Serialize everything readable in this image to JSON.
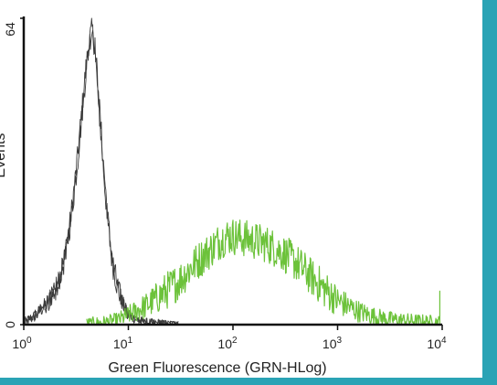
{
  "frame_color": "#2aa3b5",
  "chart_data": {
    "type": "line",
    "title": "",
    "xlabel": "Green Fluorescence (GRN-HLog)",
    "ylabel": "Events",
    "x_scale": "log",
    "xlim": [
      1,
      10000
    ],
    "ylim": [
      0,
      64
    ],
    "grid": false,
    "x_ticks": [
      {
        "base": "10",
        "exp": "0",
        "value": 1
      },
      {
        "base": "10",
        "exp": "1",
        "value": 10
      },
      {
        "base": "10",
        "exp": "2",
        "value": 100
      },
      {
        "base": "10",
        "exp": "3",
        "value": 1000
      },
      {
        "base": "10",
        "exp": "4",
        "value": 10000
      }
    ],
    "y_ticks": [
      {
        "label": "0",
        "value": 0
      },
      {
        "label": "64",
        "value": 64
      }
    ],
    "series": [
      {
        "color": "#3a3a3a",
        "x": [
          1.0,
          1.3,
          1.6,
          2.0,
          2.4,
          2.8,
          3.2,
          3.6,
          3.9,
          4.2,
          4.5,
          4.8,
          5.2,
          5.7,
          6.3,
          7.0,
          8.0,
          9.0,
          10.0,
          11.5,
          13.0,
          15.0,
          20.0,
          30.0
        ],
        "y": [
          0.5,
          2,
          4,
          7,
          13,
          22,
          33,
          45,
          53,
          59,
          62,
          57,
          46,
          34,
          22,
          13,
          7,
          4,
          2,
          1.2,
          0.8,
          0.5,
          0.3,
          0.1
        ],
        "noise": 2.5
      },
      {
        "color": "#6cc23a",
        "x": [
          4,
          6,
          8,
          10,
          15,
          20,
          30,
          40,
          50,
          60,
          70,
          80,
          90,
          100,
          130,
          160,
          200,
          250,
          300,
          400,
          500,
          700,
          1000,
          1500,
          2000,
          3000,
          5000,
          8000,
          9500
        ],
        "y": [
          0.2,
          0.5,
          1,
          2,
          4,
          6,
          9,
          12,
          14,
          15.5,
          17,
          18,
          18.5,
          18.5,
          18,
          17.5,
          17,
          16,
          15,
          13,
          11,
          8,
          5,
          3,
          2,
          1.2,
          0.8,
          0.6,
          0.5
        ],
        "noise": 4,
        "end_spike": 7
      }
    ]
  }
}
